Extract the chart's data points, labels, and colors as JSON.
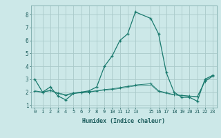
{
  "xlabel": "Humidex (Indice chaleur)",
  "bg_color": "#cce8e8",
  "line_color": "#1a7a6e",
  "grid_color": "#aacaca",
  "ylim": [
    0.8,
    8.7
  ],
  "xlim": [
    -0.5,
    23.5
  ],
  "yticks": [
    1,
    2,
    3,
    4,
    5,
    6,
    7,
    8
  ],
  "xticks": [
    0,
    1,
    2,
    3,
    4,
    5,
    6,
    7,
    8,
    9,
    10,
    11,
    12,
    13,
    15,
    16,
    17,
    18,
    19,
    20,
    21,
    22,
    23
  ],
  "xtick_labels": [
    "0",
    "1",
    "2",
    "3",
    "4",
    "5",
    "6",
    "7",
    "8",
    "9",
    "10",
    "11",
    "12",
    "13",
    "15",
    "16",
    "17",
    "18",
    "19",
    "20",
    "21",
    "22",
    "23"
  ],
  "line1_x": [
    0,
    1,
    2,
    3,
    4,
    5,
    6,
    7,
    8,
    9,
    10,
    11,
    12,
    13,
    15,
    16,
    17,
    18,
    19,
    20,
    21,
    22,
    23
  ],
  "line1_y": [
    3.0,
    2.0,
    2.4,
    1.7,
    1.4,
    1.9,
    2.0,
    2.1,
    2.4,
    4.0,
    4.8,
    6.0,
    6.5,
    8.2,
    7.7,
    6.5,
    3.5,
    2.0,
    1.6,
    1.6,
    1.3,
    3.0,
    3.3
  ],
  "line2_x": [
    0,
    1,
    2,
    3,
    4,
    5,
    6,
    7,
    8,
    9,
    10,
    11,
    12,
    13,
    15,
    16,
    17,
    18,
    19,
    20,
    21,
    22,
    23
  ],
  "line2_y": [
    2.1,
    2.0,
    2.15,
    1.9,
    1.75,
    1.9,
    1.95,
    2.0,
    2.1,
    2.2,
    2.25,
    2.35,
    2.45,
    2.55,
    2.65,
    2.1,
    1.95,
    1.8,
    1.75,
    1.7,
    1.65,
    2.85,
    3.25
  ],
  "line3_x": [
    0,
    1,
    2,
    3,
    4,
    5,
    6,
    7,
    8,
    9,
    10,
    11,
    12,
    13,
    15,
    16,
    17,
    18,
    19,
    20,
    21,
    22,
    23
  ],
  "line3_y": [
    2.05,
    2.0,
    2.1,
    1.95,
    1.8,
    1.95,
    2.0,
    2.05,
    2.1,
    2.15,
    2.2,
    2.28,
    2.38,
    2.48,
    2.55,
    2.05,
    1.9,
    1.78,
    1.73,
    1.68,
    1.63,
    2.82,
    3.22
  ]
}
